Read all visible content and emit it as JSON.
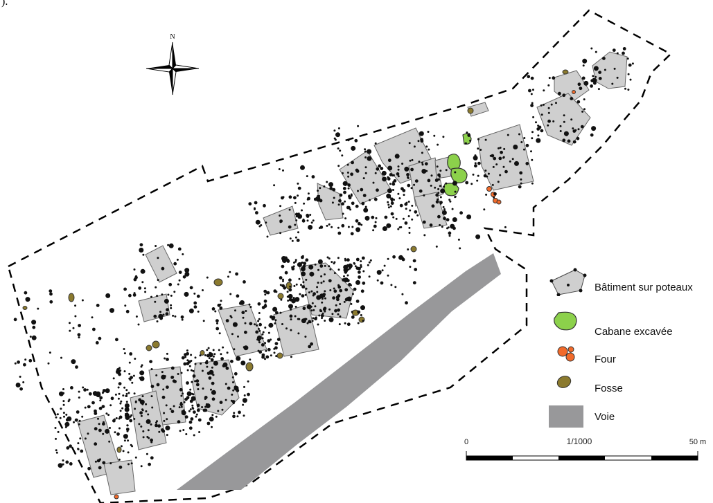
{
  "corner_text": ").",
  "compass": {
    "north_label": "N",
    "icon": "compass-rose-icon"
  },
  "legend": {
    "items": [
      {
        "label": "Bâtiment sur poteaux",
        "color": "#cfcfcf",
        "icon": "building-icon"
      },
      {
        "label": "Cabane excavée",
        "color": "#8cd14b",
        "icon": "sunken-hut-icon"
      },
      {
        "label": "Four",
        "color": "#f26a2a",
        "icon": "oven-icon"
      },
      {
        "label": "Fosse",
        "color": "#8b7a2e",
        "icon": "pit-icon"
      },
      {
        "label": "Voie",
        "color": "#98989a",
        "icon": "road-icon"
      }
    ]
  },
  "scale": {
    "start_label": "0",
    "ratio_label": "1/1000",
    "end_label": "50 m"
  },
  "colors": {
    "outline": "#000000",
    "building": "#cfcfcf",
    "post": "#111111",
    "road": "#98989a"
  }
}
